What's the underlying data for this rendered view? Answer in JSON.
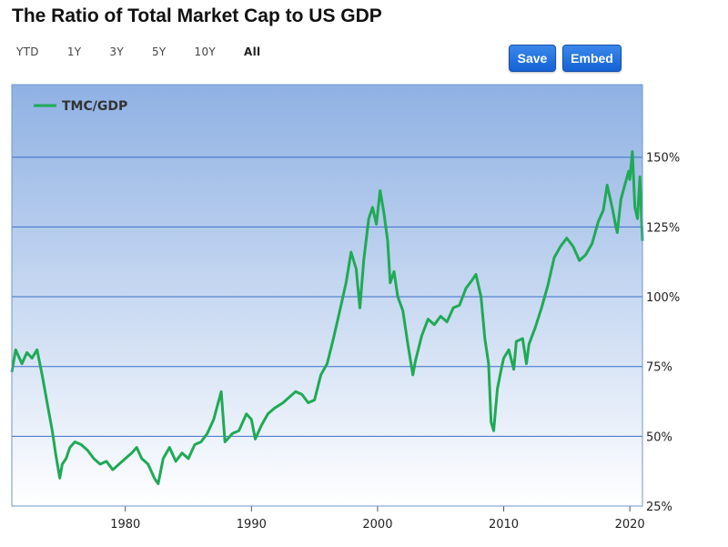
{
  "header": {
    "title": "The Ratio of Total Market Cap to US GDP"
  },
  "toolbar": {
    "ranges": [
      "YTD",
      "1Y",
      "3Y",
      "5Y",
      "10Y",
      "All"
    ],
    "active_range": "All",
    "save_label": "Save",
    "embed_label": "Embed"
  },
  "colors": {
    "line": "#1faa55",
    "plot_top": "#8fb1e3",
    "plot_bottom": "#ffffff",
    "grid": "#3b6ecb",
    "frame": "#6f95d6"
  },
  "chart_data": {
    "type": "line",
    "title": "The Ratio of Total Market Cap to US GDP",
    "xlabel": "",
    "ylabel": "",
    "x_ticks": [
      1980,
      1990,
      2000,
      2010,
      2020
    ],
    "y_ticks": [
      "25%",
      "50%",
      "75%",
      "100%",
      "125%",
      "150%"
    ],
    "y_tick_values": [
      25,
      50,
      75,
      100,
      125,
      150
    ],
    "xlim": [
      1971,
      2021
    ],
    "ylim": [
      25,
      176
    ],
    "grid": true,
    "legend": "top-left",
    "series": [
      {
        "name": "TMC/GDP",
        "x": [
          1971.0,
          1971.3,
          1971.8,
          1972.2,
          1972.6,
          1973.0,
          1973.4,
          1973.8,
          1974.2,
          1974.5,
          1974.8,
          1975.0,
          1975.3,
          1975.6,
          1976.0,
          1976.5,
          1977.0,
          1977.5,
          1978.0,
          1978.5,
          1979.0,
          1979.5,
          1980.0,
          1980.5,
          1980.9,
          1981.3,
          1981.8,
          1982.3,
          1982.6,
          1983.0,
          1983.5,
          1984.0,
          1984.5,
          1985.0,
          1985.5,
          1986.0,
          1986.5,
          1987.0,
          1987.6,
          1987.9,
          1988.5,
          1989.0,
          1989.6,
          1990.0,
          1990.3,
          1990.8,
          1991.3,
          1991.8,
          1992.5,
          1993.0,
          1993.5,
          1994.0,
          1994.5,
          1995.0,
          1995.5,
          1996.0,
          1996.5,
          1997.0,
          1997.5,
          1997.9,
          1998.3,
          1998.6,
          1998.9,
          1999.3,
          1999.6,
          1999.9,
          2000.2,
          2000.5,
          2000.8,
          2001.0,
          2001.3,
          2001.6,
          2002.0,
          2002.4,
          2002.8,
          2003.0,
          2003.5,
          2004.0,
          2004.5,
          2005.0,
          2005.5,
          2006.0,
          2006.5,
          2007.0,
          2007.5,
          2007.8,
          2008.2,
          2008.5,
          2008.8,
          2009.0,
          2009.2,
          2009.5,
          2009.8,
          2010.0,
          2010.4,
          2010.8,
          2011.0,
          2011.5,
          2011.8,
          2012.0,
          2012.5,
          2013.0,
          2013.5,
          2014.0,
          2014.5,
          2015.0,
          2015.5,
          2016.0,
          2016.5,
          2017.0,
          2017.5,
          2017.9,
          2018.2,
          2018.6,
          2018.9,
          2019.0,
          2019.3,
          2019.6,
          2019.9,
          2020.0,
          2020.2,
          2020.4,
          2020.6,
          2020.8,
          2021.0
        ],
        "y": [
          73,
          81,
          76,
          80,
          78,
          81,
          72,
          62,
          52,
          43,
          35,
          40,
          42,
          46,
          48,
          47,
          45,
          42,
          40,
          41,
          38,
          40,
          42,
          44,
          46,
          42,
          40,
          35,
          33,
          42,
          46,
          41,
          44,
          42,
          47,
          48,
          51,
          56,
          66,
          48,
          51,
          52,
          58,
          56,
          49,
          54,
          58,
          60,
          62,
          64,
          66,
          65,
          62,
          63,
          72,
          76,
          85,
          95,
          105,
          116,
          110,
          96,
          113,
          128,
          132,
          126,
          138,
          130,
          120,
          105,
          109,
          100,
          95,
          83,
          72,
          77,
          86,
          92,
          90,
          93,
          91,
          96,
          97,
          103,
          106,
          108,
          100,
          85,
          76,
          55,
          52,
          67,
          74,
          78,
          81,
          74,
          84,
          85,
          76,
          83,
          89,
          96,
          104,
          114,
          118,
          121,
          118,
          113,
          115,
          119,
          127,
          131,
          140,
          132,
          125,
          123,
          135,
          140,
          145,
          142,
          152,
          132,
          128,
          143,
          120
        ]
      }
    ]
  }
}
